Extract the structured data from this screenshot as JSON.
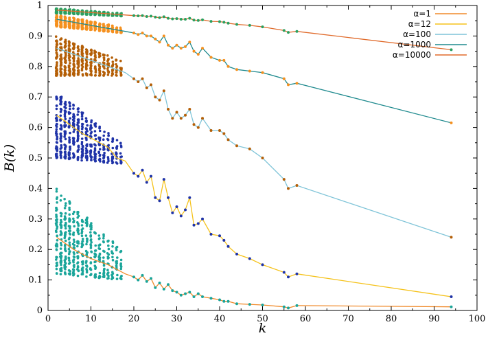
{
  "chart_data": {
    "type": "scatter",
    "title": "",
    "xlabel": "k",
    "ylabel": "B(k)",
    "xlim": [
      0,
      100
    ],
    "ylim": [
      0,
      1
    ],
    "grid": false,
    "legend_position": "top-right",
    "x_ticks": [
      "0",
      "10",
      "20",
      "30",
      "40",
      "50",
      "60",
      "70",
      "80",
      "90",
      "100"
    ],
    "y_ticks": [
      "0",
      "0.1",
      "0.2",
      "0.3",
      "0.4",
      "0.5",
      "0.6",
      "0.7",
      "0.8",
      "0.9",
      "1"
    ],
    "series": [
      {
        "name": "α=1",
        "color": "#f08a2a",
        "dot_color": "#1aa59a",
        "band": {
          "x": [
            2,
            17
          ],
          "top": [
            0.4,
            0.2
          ],
          "bottom": [
            0.12,
            0.1
          ]
        },
        "x": [
          2,
          4,
          6,
          8,
          10,
          12,
          14,
          16,
          18,
          20,
          21,
          22,
          23,
          24,
          25,
          26,
          27,
          28,
          29,
          30,
          31,
          32,
          33,
          34,
          35,
          36,
          38,
          40,
          41,
          42,
          44,
          47,
          50,
          55,
          56,
          58,
          94
        ],
        "y": [
          0.24,
          0.22,
          0.2,
          0.185,
          0.17,
          0.16,
          0.15,
          0.135,
          0.12,
          0.11,
          0.1,
          0.115,
          0.095,
          0.105,
          0.075,
          0.09,
          0.07,
          0.085,
          0.065,
          0.06,
          0.05,
          0.055,
          0.06,
          0.045,
          0.055,
          0.045,
          0.04,
          0.035,
          0.03,
          0.03,
          0.022,
          0.02,
          0.018,
          0.012,
          0.008,
          0.016,
          0.012
        ]
      },
      {
        "name": "α=12",
        "color": "#f5c21a",
        "dot_color": "#1f33a8",
        "band": {
          "x": [
            2,
            17
          ],
          "top": [
            0.72,
            0.55
          ],
          "bottom": [
            0.5,
            0.48
          ]
        },
        "x": [
          2,
          4,
          6,
          8,
          10,
          12,
          14,
          16,
          18,
          20,
          21,
          22,
          23,
          24,
          25,
          26,
          27,
          28,
          29,
          30,
          31,
          32,
          33,
          34,
          35,
          36,
          38,
          40,
          41,
          42,
          44,
          47,
          50,
          55,
          56,
          58,
          94
        ],
        "y": [
          0.64,
          0.62,
          0.6,
          0.58,
          0.565,
          0.55,
          0.535,
          0.5,
          0.49,
          0.45,
          0.44,
          0.46,
          0.42,
          0.44,
          0.37,
          0.36,
          0.43,
          0.37,
          0.32,
          0.34,
          0.31,
          0.33,
          0.37,
          0.28,
          0.285,
          0.3,
          0.25,
          0.245,
          0.23,
          0.21,
          0.185,
          0.17,
          0.15,
          0.125,
          0.11,
          0.12,
          0.045
        ]
      },
      {
        "name": "α=100",
        "color": "#7fc4d8",
        "dot_color": "#b45f07",
        "band": {
          "x": [
            2,
            17
          ],
          "top": [
            0.9,
            0.82
          ],
          "bottom": [
            0.77,
            0.77
          ]
        },
        "x": [
          2,
          4,
          6,
          8,
          10,
          12,
          14,
          16,
          18,
          20,
          21,
          22,
          23,
          24,
          25,
          26,
          27,
          28,
          29,
          30,
          31,
          32,
          33,
          34,
          35,
          36,
          38,
          40,
          41,
          42,
          44,
          47,
          50,
          55,
          56,
          58,
          94
        ],
        "y": [
          0.86,
          0.85,
          0.84,
          0.83,
          0.82,
          0.81,
          0.8,
          0.79,
          0.78,
          0.76,
          0.75,
          0.76,
          0.73,
          0.74,
          0.7,
          0.69,
          0.72,
          0.66,
          0.63,
          0.65,
          0.63,
          0.64,
          0.66,
          0.61,
          0.6,
          0.63,
          0.59,
          0.59,
          0.58,
          0.56,
          0.54,
          0.53,
          0.5,
          0.43,
          0.4,
          0.41,
          0.24
        ]
      },
      {
        "name": "α=1000",
        "color": "#1f8a8e",
        "dot_color": "#f5901e",
        "band": {
          "x": [
            2,
            17
          ],
          "top": [
            0.97,
            0.93
          ],
          "bottom": [
            0.93,
            0.91
          ]
        },
        "x": [
          2,
          4,
          6,
          8,
          10,
          12,
          14,
          16,
          18,
          20,
          21,
          22,
          23,
          24,
          25,
          26,
          27,
          28,
          29,
          30,
          31,
          32,
          33,
          34,
          35,
          36,
          38,
          40,
          41,
          42,
          44,
          47,
          50,
          55,
          56,
          58,
          94
        ],
        "y": [
          0.955,
          0.95,
          0.945,
          0.94,
          0.935,
          0.93,
          0.925,
          0.92,
          0.915,
          0.91,
          0.905,
          0.91,
          0.9,
          0.9,
          0.89,
          0.88,
          0.9,
          0.87,
          0.86,
          0.87,
          0.86,
          0.865,
          0.88,
          0.85,
          0.84,
          0.86,
          0.83,
          0.82,
          0.82,
          0.8,
          0.79,
          0.785,
          0.78,
          0.76,
          0.74,
          0.745,
          0.615
        ]
      },
      {
        "name": "α=10000",
        "color": "#e06a2a",
        "dot_color": "#2aa060",
        "band": {
          "x": [
            2,
            17
          ],
          "top": [
            0.99,
            0.975
          ],
          "bottom": [
            0.975,
            0.965
          ]
        },
        "x": [
          2,
          4,
          6,
          8,
          10,
          12,
          14,
          16,
          18,
          20,
          21,
          22,
          23,
          24,
          25,
          26,
          27,
          28,
          29,
          30,
          31,
          32,
          33,
          34,
          35,
          36,
          38,
          40,
          41,
          42,
          44,
          47,
          50,
          55,
          56,
          58,
          94
        ],
        "y": [
          0.985,
          0.983,
          0.981,
          0.979,
          0.977,
          0.975,
          0.973,
          0.971,
          0.969,
          0.967,
          0.966,
          0.967,
          0.964,
          0.965,
          0.962,
          0.96,
          0.963,
          0.958,
          0.956,
          0.957,
          0.955,
          0.955,
          0.958,
          0.952,
          0.951,
          0.953,
          0.948,
          0.947,
          0.945,
          0.942,
          0.938,
          0.935,
          0.93,
          0.918,
          0.912,
          0.915,
          0.855
        ]
      }
    ]
  }
}
